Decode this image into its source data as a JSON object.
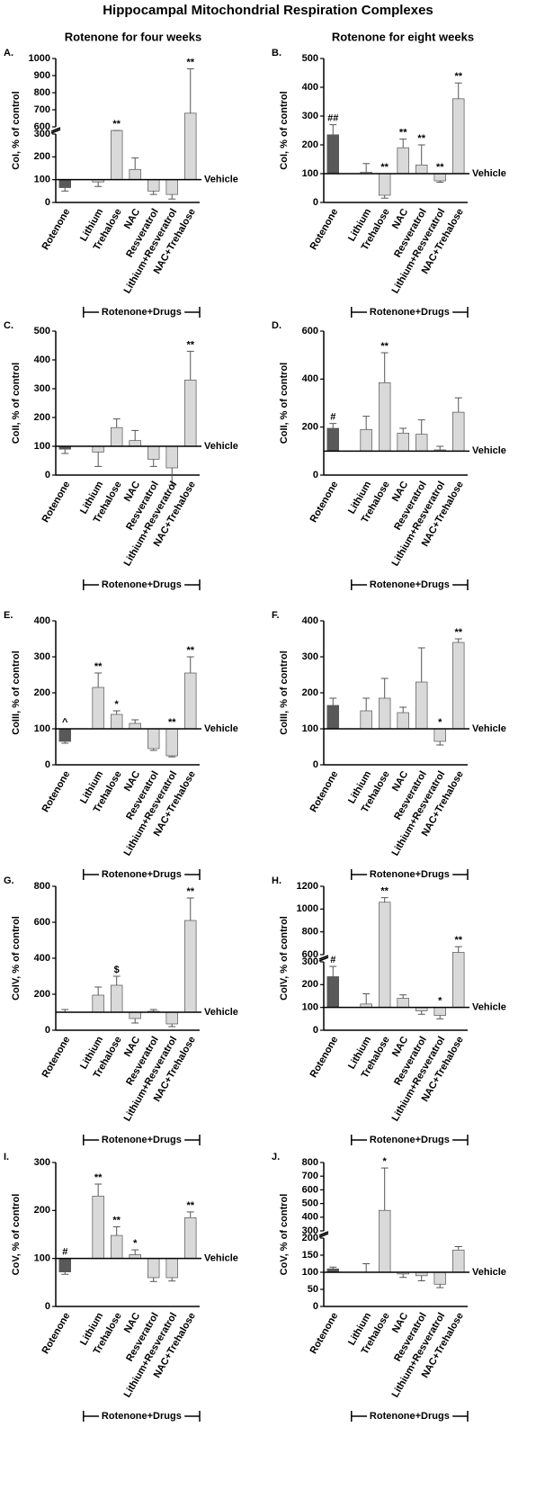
{
  "title": "Hippocampal Mitochondrial Respiration Complexes",
  "column_titles": [
    "Rotenone for four weeks",
    "Rotenone for eight weeks"
  ],
  "chart_data": [
    {
      "type": "bar",
      "panel": "A.",
      "ylabel": "CoI, % of control",
      "categories": [
        "Rotenone",
        "Lithium",
        "Trehalose",
        "NAC",
        "Resveratrol",
        "Lithium+Resveratrol",
        "NAC+Trehalose"
      ],
      "values": [
        65,
        90,
        305,
        145,
        50,
        35,
        680
      ],
      "errors": [
        15,
        20,
        70,
        50,
        15,
        20,
        260
      ],
      "annotations": [
        null,
        null,
        "**",
        null,
        null,
        null,
        "**"
      ],
      "colors": [
        "#595959",
        "#d9d9d9",
        "#d9d9d9",
        "#d9d9d9",
        "#d9d9d9",
        "#d9d9d9",
        "#d9d9d9"
      ],
      "ylim": [
        0,
        1000
      ],
      "axis_break": [
        300,
        600
      ],
      "yticks": [
        0,
        100,
        200,
        300,
        600,
        700,
        800,
        900,
        1000
      ],
      "baseline": 100,
      "baseline_label": "Vehicle",
      "group_label": "Rotenone+Drugs"
    },
    {
      "type": "bar",
      "panel": "B.",
      "ylabel": "CoI, % of control",
      "categories": [
        "Rotenone",
        "Lithium",
        "Trehalose",
        "NAC",
        "Resveratrol",
        "Lithium+Resveratrol",
        "NAC+Trehalose"
      ],
      "values": [
        235,
        105,
        25,
        190,
        130,
        75,
        360
      ],
      "errors": [
        35,
        30,
        10,
        30,
        70,
        5,
        55
      ],
      "annotations": [
        "##",
        null,
        "**",
        "**",
        "**",
        "**",
        "**"
      ],
      "colors": [
        "#595959",
        "#d9d9d9",
        "#d9d9d9",
        "#d9d9d9",
        "#d9d9d9",
        "#d9d9d9",
        "#d9d9d9"
      ],
      "ylim": [
        0,
        500
      ],
      "yticks": [
        0,
        100,
        200,
        300,
        400,
        500
      ],
      "baseline": 100,
      "baseline_label": "Vehicle",
      "group_label": "Rotenone+Drugs"
    },
    {
      "type": "bar",
      "panel": "C.",
      "ylabel": "CoII, % of control",
      "categories": [
        "Rotenone",
        "Lithium",
        "Trehalose",
        "NAC",
        "Resveratrol",
        "Lithium+Resveratrol",
        "NAC+Trehalose"
      ],
      "values": [
        90,
        80,
        165,
        120,
        55,
        25,
        330
      ],
      "errors": [
        15,
        50,
        30,
        35,
        25,
        60,
        100
      ],
      "annotations": [
        null,
        null,
        null,
        null,
        null,
        null,
        "**"
      ],
      "colors": [
        "#595959",
        "#d9d9d9",
        "#d9d9d9",
        "#d9d9d9",
        "#d9d9d9",
        "#d9d9d9",
        "#d9d9d9"
      ],
      "ylim": [
        0,
        500
      ],
      "yticks": [
        0,
        100,
        200,
        300,
        400,
        500
      ],
      "baseline": 100,
      "baseline_label": "Vehicle",
      "group_label": "Rotenone+Drugs"
    },
    {
      "type": "bar",
      "panel": "D.",
      "ylabel": "CoII, % of control",
      "categories": [
        "Rotenone",
        "Lithium",
        "Trehalose",
        "NAC",
        "Resveratrol",
        "Lithium+Resveratrol",
        "NAC+Trehalose"
      ],
      "values": [
        195,
        190,
        385,
        175,
        170,
        105,
        262
      ],
      "errors": [
        20,
        55,
        125,
        20,
        60,
        15,
        60
      ],
      "annotations": [
        "#",
        null,
        "**",
        null,
        null,
        null,
        null
      ],
      "colors": [
        "#595959",
        "#d9d9d9",
        "#d9d9d9",
        "#d9d9d9",
        "#d9d9d9",
        "#d9d9d9",
        "#d9d9d9"
      ],
      "ylim": [
        0,
        600
      ],
      "yticks": [
        0,
        200,
        400,
        600
      ],
      "baseline": 100,
      "baseline_label": "Vehicle",
      "group_label": "Rotenone+Drugs"
    },
    {
      "type": "bar",
      "panel": "E.",
      "ylabel": "CoIII, % of control",
      "categories": [
        "Rotenone",
        "Lithium",
        "Trehalose",
        "NAC",
        "Resveratrol",
        "Lithium+Resveratrol",
        "NAC+Trehalose"
      ],
      "values": [
        65,
        215,
        140,
        115,
        45,
        25,
        255
      ],
      "errors": [
        5,
        40,
        10,
        10,
        5,
        3,
        45
      ],
      "annotations": [
        "^",
        "**",
        "*",
        null,
        null,
        "**",
        "**"
      ],
      "colors": [
        "#595959",
        "#d9d9d9",
        "#d9d9d9",
        "#d9d9d9",
        "#d9d9d9",
        "#d9d9d9",
        "#d9d9d9"
      ],
      "ylim": [
        0,
        400
      ],
      "yticks": [
        0,
        100,
        200,
        300,
        400
      ],
      "baseline": 100,
      "baseline_label": "Vehicle",
      "group_label": "Rotenone+Drugs"
    },
    {
      "type": "bar",
      "panel": "F.",
      "ylabel": "CoIII, % of control",
      "categories": [
        "Rotenone",
        "Lithium",
        "Trehalose",
        "NAC",
        "Resveratrol",
        "Lithium+Resveratrol",
        "NAC+Trehalose"
      ],
      "values": [
        165,
        150,
        185,
        145,
        230,
        65,
        340
      ],
      "errors": [
        20,
        35,
        55,
        15,
        95,
        10,
        10
      ],
      "annotations": [
        null,
        null,
        null,
        null,
        null,
        "*",
        "**"
      ],
      "colors": [
        "#595959",
        "#d9d9d9",
        "#d9d9d9",
        "#d9d9d9",
        "#d9d9d9",
        "#d9d9d9",
        "#d9d9d9"
      ],
      "ylim": [
        0,
        400
      ],
      "yticks": [
        0,
        100,
        200,
        300,
        400
      ],
      "baseline": 100,
      "baseline_label": "Vehicle",
      "group_label": "Rotenone+Drugs"
    },
    {
      "type": "bar",
      "panel": "G.",
      "ylabel": "CoIV, % of control",
      "categories": [
        "Rotenone",
        "Lithium",
        "Trehalose",
        "NAC",
        "Resveratrol",
        "Lithium+Resveratrol",
        "NAC+Trehalose"
      ],
      "values": [
        100,
        195,
        250,
        65,
        105,
        35,
        610
      ],
      "errors": [
        15,
        45,
        50,
        25,
        10,
        15,
        125
      ],
      "annotations": [
        null,
        null,
        "$",
        null,
        null,
        null,
        "**"
      ],
      "colors": [
        "#595959",
        "#d9d9d9",
        "#d9d9d9",
        "#d9d9d9",
        "#d9d9d9",
        "#d9d9d9",
        "#d9d9d9"
      ],
      "ylim": [
        0,
        800
      ],
      "yticks": [
        0,
        200,
        400,
        600,
        800
      ],
      "baseline": 100,
      "baseline_label": "Vehicle",
      "group_label": "Rotenone+Drugs"
    },
    {
      "type": "bar",
      "panel": "H.",
      "ylabel": "CoIV, % of control",
      "categories": [
        "Rotenone",
        "Lithium",
        "Trehalose",
        "NAC",
        "Resveratrol",
        "Lithium+Resveratrol",
        "NAC+Trehalose"
      ],
      "values": [
        235,
        115,
        1060,
        140,
        85,
        65,
        620
      ],
      "errors": [
        45,
        45,
        40,
        15,
        15,
        15,
        50
      ],
      "annotations": [
        "#",
        null,
        "**",
        null,
        null,
        "*",
        "**"
      ],
      "colors": [
        "#595959",
        "#d9d9d9",
        "#d9d9d9",
        "#d9d9d9",
        "#d9d9d9",
        "#d9d9d9",
        "#d9d9d9"
      ],
      "ylim": [
        0,
        1200
      ],
      "axis_break": [
        300,
        600
      ],
      "yticks": [
        0,
        100,
        200,
        300,
        600,
        800,
        1000,
        1200
      ],
      "baseline": 100,
      "baseline_label": "Vehicle",
      "group_label": "Rotenone+Drugs"
    },
    {
      "type": "bar",
      "panel": "I.",
      "ylabel": "CoV, % of control",
      "categories": [
        "Rotenone",
        "Lithium",
        "Trehalose",
        "NAC",
        "Resveratrol",
        "Lithium+Resveratrol",
        "NAC+Trehalose"
      ],
      "values": [
        72,
        230,
        148,
        108,
        60,
        60,
        185
      ],
      "errors": [
        5,
        25,
        18,
        10,
        8,
        7,
        12
      ],
      "annotations": [
        "#",
        "**",
        "**",
        "*",
        null,
        null,
        "**"
      ],
      "colors": [
        "#595959",
        "#d9d9d9",
        "#d9d9d9",
        "#d9d9d9",
        "#d9d9d9",
        "#d9d9d9",
        "#d9d9d9"
      ],
      "ylim": [
        0,
        300
      ],
      "yticks": [
        0,
        100,
        200,
        300
      ],
      "baseline": 100,
      "baseline_label": "Vehicle",
      "group_label": "Rotenone+Drugs"
    },
    {
      "type": "bar",
      "panel": "J.",
      "ylabel": "CoV, % of control",
      "categories": [
        "Rotenone",
        "Lithium",
        "Trehalose",
        "NAC",
        "Resveratrol",
        "Lithium+Resveratrol",
        "NAC+Trehalose"
      ],
      "values": [
        110,
        100,
        450,
        95,
        90,
        65,
        165
      ],
      "errors": [
        5,
        25,
        310,
        10,
        15,
        10,
        10
      ],
      "annotations": [
        null,
        null,
        "*",
        null,
        null,
        null,
        null
      ],
      "colors": [
        "#595959",
        "#d9d9d9",
        "#d9d9d9",
        "#d9d9d9",
        "#d9d9d9",
        "#d9d9d9",
        "#d9d9d9"
      ],
      "ylim": [
        0,
        800
      ],
      "axis_break": [
        200,
        300
      ],
      "yticks": [
        0,
        50,
        100,
        150,
        200,
        300,
        400,
        500,
        600,
        700,
        800
      ],
      "baseline": 100,
      "baseline_label": "Vehicle",
      "group_label": "Rotenone+Drugs"
    }
  ]
}
